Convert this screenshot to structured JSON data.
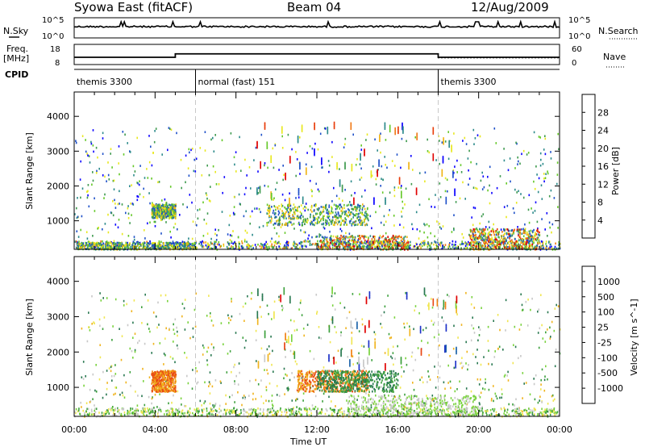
{
  "header": {
    "station": "Syowa East (fitACF)",
    "beam": "Beam 04",
    "date": "12/Aug/2009"
  },
  "top_panels": {
    "nsky_label": "N.Sky",
    "nsky_ticks": [
      "10^5",
      "10^0"
    ],
    "nsearch_label": "N.Search",
    "nsearch_ticks": [
      "10^5",
      "10^0"
    ],
    "freq_label_1": "Freq.",
    "freq_label_2": "[MHz]",
    "freq_ticks": [
      "18",
      "8"
    ],
    "nave_label": "Nave",
    "nave_ticks": [
      "60",
      "0"
    ],
    "cpid_label": "CPID"
  },
  "cpid_segments": [
    {
      "label": "themis 3300",
      "start_h": 0,
      "end_h": 6
    },
    {
      "label": "normal (fast) 151",
      "start_h": 6,
      "end_h": 18
    },
    {
      "label": "themis 3300",
      "start_h": 18,
      "end_h": 24
    }
  ],
  "frequency_steps": [
    {
      "start_h": 0,
      "end_h": 5,
      "mhz": 11.6
    },
    {
      "start_h": 5,
      "end_h": 18,
      "mhz": 13.3
    },
    {
      "start_h": 18,
      "end_h": 24,
      "mhz": 11.6
    }
  ],
  "chart_data": [
    {
      "type": "heatmap",
      "title": "",
      "xlabel": "Time UT",
      "ylabel": "Slant Range [km]",
      "x_ticks": [
        "00:00",
        "04:00",
        "08:00",
        "12:00",
        "16:00",
        "20:00",
        "00:00"
      ],
      "x_range_hours": [
        0,
        24
      ],
      "y_ticks": [
        1000,
        2000,
        3000,
        4000
      ],
      "ylim": [
        180,
        4700
      ],
      "colorbar": {
        "label": "Power [dB]",
        "ticks": [
          "4",
          "8",
          "12",
          "16",
          "20",
          "24",
          "28"
        ],
        "colors": [
          "#0a00ff",
          "#1e50c8",
          "#2c8a8a",
          "#3e9a4e",
          "#64c828",
          "#e8e81e",
          "#f0b414",
          "#f07814",
          "#e83c0a",
          "#e00000"
        ]
      },
      "scatter_regions": [
        {
          "time_h": [
            0.1,
            6.0
          ],
          "range_km": [
            200,
            400
          ],
          "value": "4-12"
        },
        {
          "time_h": [
            3.8,
            5.0
          ],
          "range_km": [
            1100,
            1500
          ],
          "value": "8-20"
        },
        {
          "time_h": [
            9.5,
            14.5
          ],
          "range_km": [
            900,
            1500
          ],
          "value": "8-20"
        },
        {
          "time_h": [
            12.0,
            16.5
          ],
          "range_km": [
            200,
            600
          ],
          "value": "12-28"
        },
        {
          "time_h": [
            19.5,
            23.0
          ],
          "range_km": [
            200,
            800
          ],
          "value": "12-28"
        }
      ]
    },
    {
      "type": "heatmap",
      "title": "",
      "xlabel": "Time UT",
      "ylabel": "Slant Range [km]",
      "x_ticks": [
        "00:00",
        "04:00",
        "08:00",
        "12:00",
        "16:00",
        "20:00",
        "00:00"
      ],
      "x_range_hours": [
        0,
        24
      ],
      "y_ticks": [
        1000,
        2000,
        3000,
        4000
      ],
      "ylim": [
        180,
        4700
      ],
      "colorbar": {
        "label": "Velocity [m s^-1]",
        "ticks": [
          "1000",
          "500",
          "100",
          "25",
          "-25",
          "-100",
          "-500",
          "-1000"
        ],
        "colors": [
          "#1e32c8",
          "#1e64aa",
          "#287850",
          "#3ca03c",
          "#78d23c",
          "#c8c8c8",
          "#f0e650",
          "#f0b41e",
          "#f08214",
          "#e84614",
          "#e00000"
        ]
      },
      "scatter_regions": [
        {
          "time_h": [
            3.8,
            5.0
          ],
          "range_km": [
            900,
            1500
          ],
          "value": "-100 to -500"
        },
        {
          "time_h": [
            11.0,
            14.5
          ],
          "range_km": [
            900,
            1500
          ],
          "value": "-100 to -500"
        },
        {
          "time_h": [
            12.0,
            16.0
          ],
          "range_km": [
            900,
            1500
          ],
          "value": "100 to 500"
        },
        {
          "time_h": [
            13.5,
            20.0
          ],
          "range_km": [
            200,
            800
          ],
          "value": "25 to 100"
        }
      ]
    }
  ]
}
